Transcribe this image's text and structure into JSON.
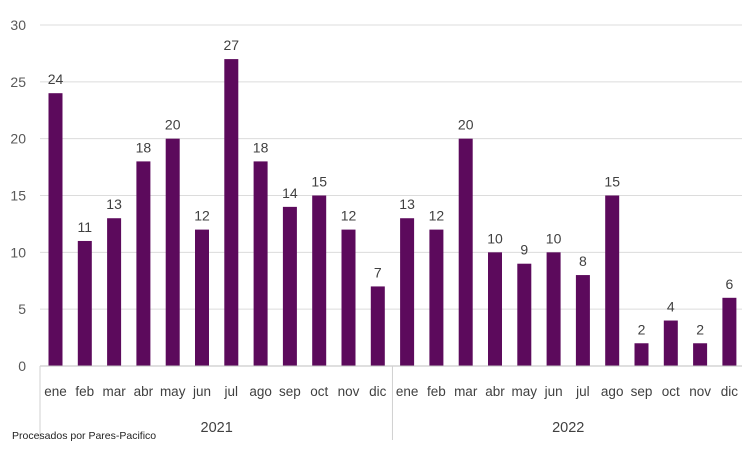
{
  "chart_data": {
    "type": "bar",
    "color": "#5c0a5c",
    "ylim": [
      0,
      30
    ],
    "yticks": [
      0,
      5,
      10,
      15,
      20,
      25,
      30
    ],
    "grid": true,
    "groups": [
      {
        "label": "2021",
        "categories": [
          "ene",
          "feb",
          "mar",
          "abr",
          "may",
          "jun",
          "jul",
          "ago",
          "sep",
          "oct",
          "nov",
          "dic"
        ],
        "values": [
          24,
          11,
          13,
          18,
          20,
          12,
          27,
          18,
          14,
          15,
          12,
          7
        ]
      },
      {
        "label": "2022",
        "categories": [
          "ene",
          "feb",
          "mar",
          "abr",
          "may",
          "jun",
          "jul",
          "ago",
          "sep",
          "oct",
          "nov",
          "dic"
        ],
        "values": [
          13,
          12,
          20,
          10,
          9,
          10,
          8,
          15,
          2,
          4,
          2,
          6
        ]
      }
    ]
  },
  "footnote": "Procesados por Pares-Pacifico"
}
